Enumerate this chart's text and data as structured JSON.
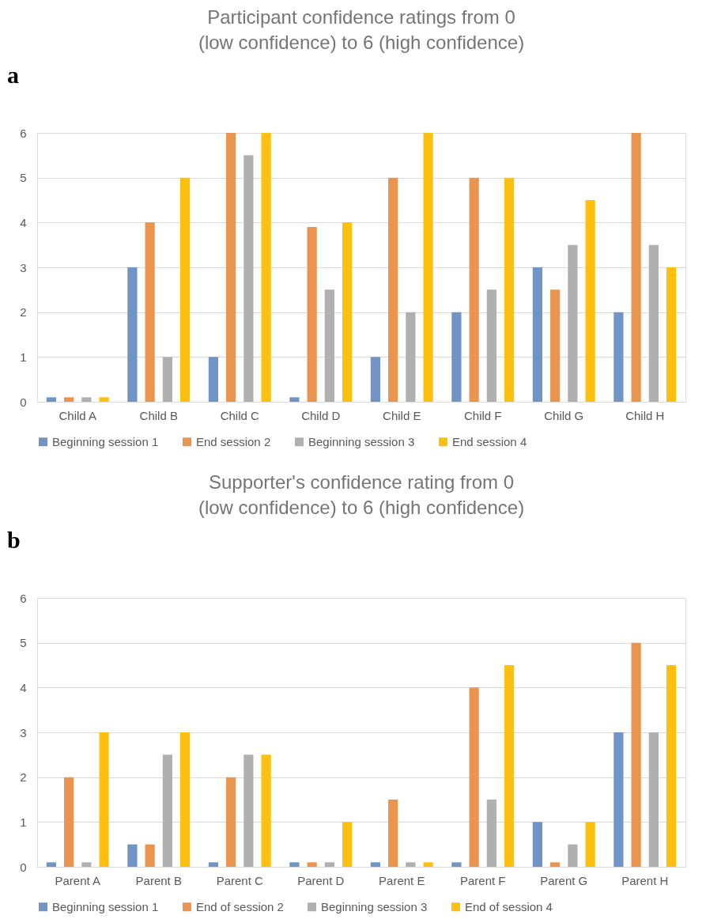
{
  "chart_data": [
    {
      "type": "bar",
      "title": "Participant confidence ratings from 0 (low confidence) to 6 (high confidence)",
      "annotations": [
        "a"
      ],
      "categories": [
        "Child A",
        "Child B",
        "Child C",
        "Child D",
        "Child E",
        "Child F",
        "Child G",
        "Child H"
      ],
      "series": [
        {
          "name": "Beginning session 1",
          "color": "#7094c3",
          "values": [
            0.1,
            3,
            1,
            0.1,
            1,
            2,
            3,
            2
          ]
        },
        {
          "name": "End session 2",
          "color": "#e9954f",
          "values": [
            0.1,
            4,
            6,
            3.9,
            5,
            5,
            2.5,
            6
          ]
        },
        {
          "name": "Beginning session 3",
          "color": "#b0b0b0",
          "values": [
            0.1,
            1,
            5.5,
            2.5,
            2,
            2.5,
            3.5,
            3.5
          ]
        },
        {
          "name": "End session 4",
          "color": "#fdc00f",
          "values": [
            0.1,
            5,
            6,
            4,
            6,
            5,
            4.5,
            3
          ]
        }
      ],
      "ylim": [
        0,
        6
      ],
      "yticks": [
        0,
        1,
        2,
        3,
        4,
        5,
        6
      ],
      "grid": "y",
      "legend": "bottom"
    },
    {
      "type": "bar",
      "title": "Supporter's confidence rating from 0 (low confidence) to 6 (high confidence)",
      "annotations": [
        "b"
      ],
      "categories": [
        "Parent A",
        "Parent B",
        "Parent C",
        "Parent D",
        "Parent E",
        "Parent F",
        "Parent G",
        "Parent H"
      ],
      "series": [
        {
          "name": "Beginning session 1",
          "color": "#7094c3",
          "values": [
            0.1,
            0.5,
            0.1,
            0.1,
            0.1,
            0.1,
            1,
            3
          ]
        },
        {
          "name": "End of session 2",
          "color": "#e9954f",
          "values": [
            2,
            0.5,
            2,
            0.1,
            1.5,
            4,
            0.1,
            5
          ]
        },
        {
          "name": "Beginning session 3",
          "color": "#b0b0b0",
          "values": [
            0.1,
            2.5,
            2.5,
            0.1,
            0.1,
            1.5,
            0.5,
            3
          ]
        },
        {
          "name": "End of session 4",
          "color": "#fdc00f",
          "values": [
            3,
            3,
            2.5,
            1,
            0.1,
            4.5,
            1,
            4.5
          ]
        }
      ],
      "ylim": [
        0,
        6
      ],
      "yticks": [
        0,
        1,
        2,
        3,
        4,
        5,
        6
      ],
      "grid": "y",
      "legend": "bottom"
    }
  ]
}
